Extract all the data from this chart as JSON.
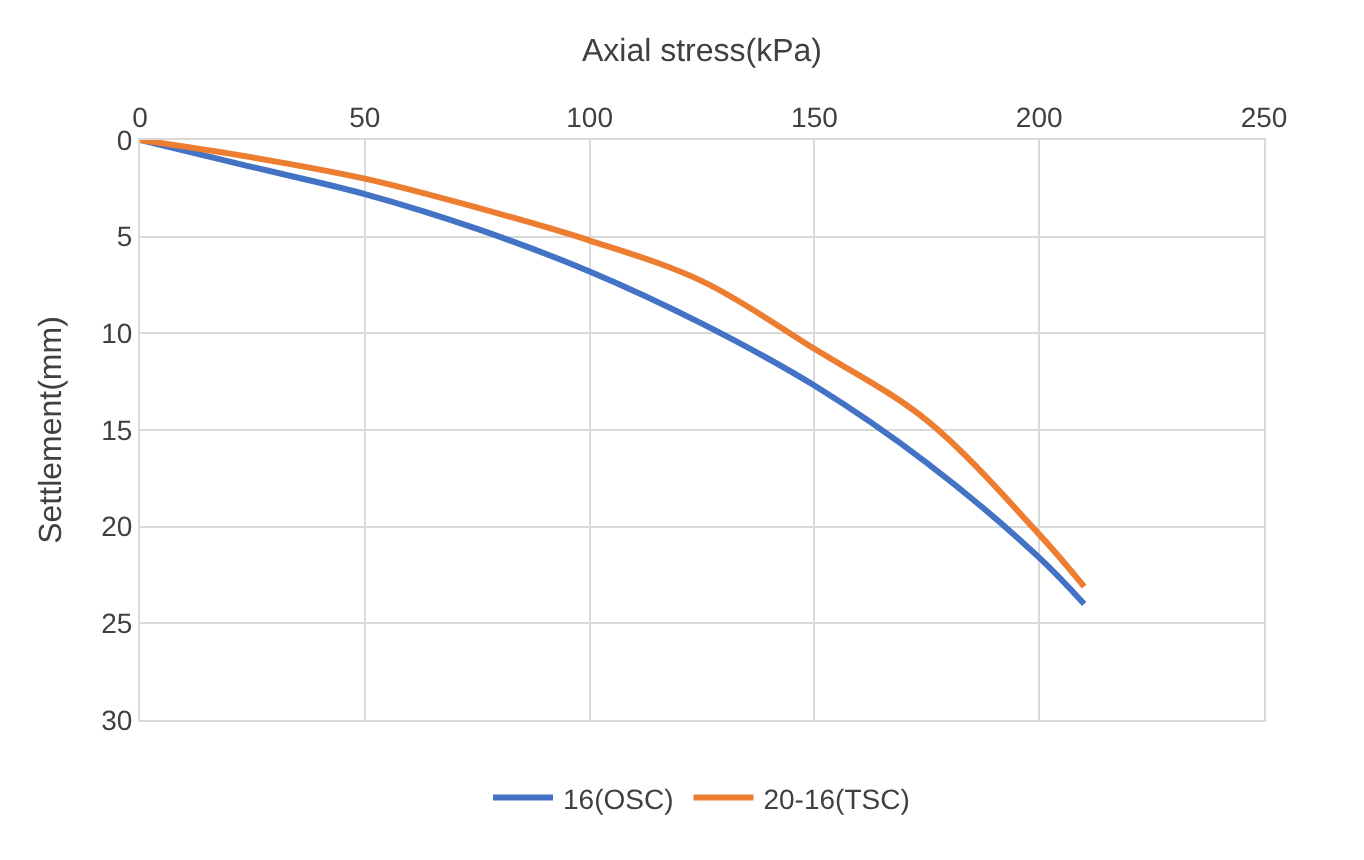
{
  "chart_data": {
    "type": "line",
    "xlabel": "Axial stress(kPa)",
    "ylabel": "Settlement(mm)",
    "x": [
      0,
      25,
      50,
      75,
      100,
      125,
      150,
      175,
      200,
      210
    ],
    "series": [
      {
        "name": "16(OSC)",
        "color": "#4472c4",
        "values": [
          0,
          1.4,
          2.8,
          4.6,
          6.8,
          9.5,
          12.7,
          16.7,
          21.6,
          24.0
        ]
      },
      {
        "name": "20-16(TSC)",
        "color": "#ed7d31",
        "values": [
          0,
          0.9,
          2.0,
          3.5,
          5.2,
          7.3,
          10.8,
          14.5,
          20.4,
          23.1
        ]
      }
    ],
    "xlim": [
      0,
      250
    ],
    "xticks": [
      0,
      50,
      100,
      150,
      200,
      250
    ],
    "ylim": [
      30,
      0
    ],
    "yticks": [
      0,
      5,
      10,
      15,
      20,
      25,
      30
    ],
    "grid": true,
    "legend": "bottom",
    "marker": "none",
    "line_style": "solid"
  }
}
